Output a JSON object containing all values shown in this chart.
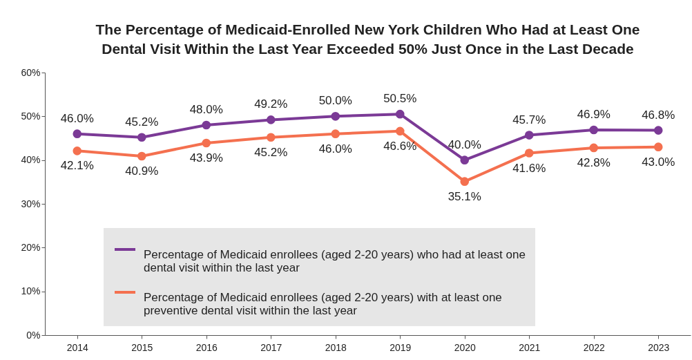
{
  "chart_data": {
    "type": "line",
    "title": [
      "The Percentage of Medicaid-Enrolled New York Children Who Had at Least One",
      "Dental Visit Within the Last Year Exceeded 50% Just Once in the Last Decade"
    ],
    "categories": [
      "2014",
      "2015",
      "2016",
      "2017",
      "2018",
      "2019",
      "2020",
      "2021",
      "2022",
      "2023"
    ],
    "series": [
      {
        "name": "Percentage of Medicaid enrollees (aged 2-20 years) who had at least one dental visit within the last year",
        "color": "#7b3a96",
        "values": [
          46.0,
          45.2,
          48.0,
          49.2,
          50.0,
          50.5,
          40.0,
          45.7,
          46.9,
          46.8
        ],
        "value_labels": [
          "46.0%",
          "45.2%",
          "48.0%",
          "49.2%",
          "50.0%",
          "50.5%",
          "40.0%",
          "45.7%",
          "46.9%",
          "46.8%"
        ]
      },
      {
        "name": "Percentage of Medicaid enrollees (aged 2-20 years) with at least one preventive dental visit within the last year",
        "color": "#f4704f",
        "values": [
          42.1,
          40.9,
          43.9,
          45.2,
          46.0,
          46.6,
          35.1,
          41.6,
          42.8,
          43.0
        ],
        "value_labels": [
          "42.1%",
          "40.9%",
          "43.9%",
          "45.2%",
          "46.0%",
          "46.6%",
          "35.1%",
          "41.6%",
          "42.8%",
          "43.0%"
        ]
      }
    ],
    "ylim": [
      0,
      60
    ],
    "yticks": [
      {
        "value": 0,
        "label": "0%"
      },
      {
        "value": 10,
        "label": "10%"
      },
      {
        "value": 20,
        "label": "20%"
      },
      {
        "value": 30,
        "label": "30%"
      },
      {
        "value": 40,
        "label": "40%"
      },
      {
        "value": 50,
        "label": "50%"
      },
      {
        "value": 60,
        "label": "60%"
      }
    ],
    "grid": false,
    "legend": "bottom",
    "marker": "circle",
    "line_style": "solid"
  }
}
